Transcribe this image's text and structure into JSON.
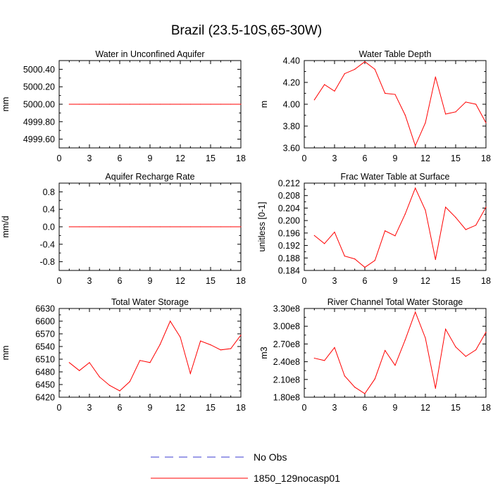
{
  "page": {
    "title": "Brazil (23.5-10S,65-30W)"
  },
  "legend": {
    "items": [
      {
        "label": "No Obs",
        "color": "#3b3bd1",
        "dash": true
      },
      {
        "label": "1850_129nocasp01",
        "color": "#ff0000",
        "dash": false
      }
    ]
  },
  "chart_data": [
    {
      "type": "line",
      "title": "Water in Unconfined Aquifer",
      "ylabel": "mm",
      "xlim": [
        0,
        18
      ],
      "ylim": [
        4999.5,
        5000.5
      ],
      "xticks": [
        0,
        3,
        6,
        9,
        12,
        15,
        18
      ],
      "yticks": [
        4999.6,
        4999.8,
        5000.0,
        5000.2,
        5000.4
      ],
      "ytick_labels": [
        "4999.60",
        "4999.80",
        "5000.00",
        "5000.20",
        "5000.40"
      ],
      "grid": false,
      "series": [
        {
          "name": "1850_129nocasp01",
          "color": "#ff0000",
          "x": [
            1,
            2,
            3,
            4,
            5,
            6,
            7,
            8,
            9,
            10,
            11,
            12,
            13,
            14,
            15,
            16,
            17,
            18
          ],
          "values": [
            5000,
            5000,
            5000,
            5000,
            5000,
            5000,
            5000,
            5000,
            5000,
            5000,
            5000,
            5000,
            5000,
            5000,
            5000,
            5000,
            5000,
            5000
          ]
        }
      ]
    },
    {
      "type": "line",
      "title": "Water Table Depth",
      "ylabel": "m",
      "xlim": [
        0,
        18
      ],
      "ylim": [
        3.6,
        4.4
      ],
      "xticks": [
        0,
        3,
        6,
        9,
        12,
        15,
        18
      ],
      "yticks": [
        3.6,
        3.8,
        4.0,
        4.2,
        4.4
      ],
      "ytick_labels": [
        "3.60",
        "3.80",
        "4.00",
        "4.20",
        "4.40"
      ],
      "grid": false,
      "series": [
        {
          "name": "1850_129nocasp01",
          "color": "#ff0000",
          "x": [
            1,
            2,
            3,
            4,
            5,
            6,
            7,
            8,
            9,
            10,
            11,
            12,
            13,
            14,
            15,
            16,
            17,
            18
          ],
          "values": [
            4.04,
            4.18,
            4.12,
            4.28,
            4.32,
            4.39,
            4.32,
            4.1,
            4.09,
            3.9,
            3.62,
            3.83,
            4.25,
            3.91,
            3.93,
            4.02,
            4.0,
            3.83
          ]
        }
      ]
    },
    {
      "type": "line",
      "title": "Aquifer Recharge Rate",
      "ylabel": "mm/d",
      "xlim": [
        0,
        18
      ],
      "ylim": [
        -1.0,
        1.0
      ],
      "xticks": [
        0,
        3,
        6,
        9,
        12,
        15,
        18
      ],
      "yticks": [
        -0.8,
        -0.4,
        0.0,
        0.4,
        0.8
      ],
      "ytick_labels": [
        "-0.8",
        "-0.4",
        "0.0",
        "0.4",
        "0.8"
      ],
      "grid": false,
      "series": [
        {
          "name": "1850_129nocasp01",
          "color": "#ff0000",
          "x": [
            1,
            2,
            3,
            4,
            5,
            6,
            7,
            8,
            9,
            10,
            11,
            12,
            13,
            14,
            15,
            16,
            17,
            18
          ],
          "values": [
            0,
            0,
            0,
            0,
            0,
            0,
            0,
            0,
            0,
            0,
            0,
            0,
            0,
            0,
            0,
            0,
            0,
            0
          ]
        }
      ]
    },
    {
      "type": "line",
      "title": "Frac Water Table at Surface",
      "ylabel": "unitless [0-1]",
      "xlim": [
        0,
        18
      ],
      "ylim": [
        0.184,
        0.212
      ],
      "xticks": [
        0,
        3,
        6,
        9,
        12,
        15,
        18
      ],
      "yticks": [
        0.184,
        0.188,
        0.192,
        0.196,
        0.2,
        0.204,
        0.208,
        0.212
      ],
      "ytick_labels": [
        "0.184",
        "0.188",
        "0.192",
        "0.196",
        "0.200",
        "0.204",
        "0.208",
        "0.212"
      ],
      "grid": false,
      "series": [
        {
          "name": "1850_129nocasp01",
          "color": "#ff0000",
          "x": [
            1,
            2,
            3,
            4,
            5,
            6,
            7,
            8,
            9,
            10,
            11,
            12,
            13,
            14,
            15,
            16,
            17,
            18
          ],
          "values": [
            0.1952,
            0.1926,
            0.1963,
            0.1886,
            0.1877,
            0.185,
            0.1872,
            0.1967,
            0.1951,
            0.2021,
            0.2104,
            0.2033,
            0.1875,
            0.2043,
            0.201,
            0.1971,
            0.1985,
            0.2043
          ]
        }
      ]
    },
    {
      "type": "line",
      "title": "Total Water Storage",
      "ylabel": "mm",
      "xlim": [
        0,
        18
      ],
      "ylim": [
        6420,
        6630
      ],
      "xticks": [
        0,
        3,
        6,
        9,
        12,
        15,
        18
      ],
      "yticks": [
        6420,
        6450,
        6480,
        6510,
        6540,
        6570,
        6600,
        6630
      ],
      "ytick_labels": [
        "6420",
        "6450",
        "6480",
        "6510",
        "6540",
        "6570",
        "6600",
        "6630"
      ],
      "grid": false,
      "series": [
        {
          "name": "1850_129nocasp01",
          "color": "#ff0000",
          "x": [
            1,
            2,
            3,
            4,
            5,
            6,
            7,
            8,
            9,
            10,
            11,
            12,
            13,
            14,
            15,
            16,
            17,
            18
          ],
          "values": [
            6502,
            6483,
            6502,
            6468,
            6448,
            6435,
            6457,
            6507,
            6502,
            6545,
            6600,
            6562,
            6476,
            6553,
            6544,
            6532,
            6535,
            6567
          ]
        }
      ]
    },
    {
      "type": "line",
      "title": "River Channel Total Water Storage",
      "ylabel": "m3",
      "xlim": [
        0,
        18
      ],
      "ylim": [
        180000000,
        330000000
      ],
      "xticks": [
        0,
        3,
        6,
        9,
        12,
        15,
        18
      ],
      "yticks": [
        180000000,
        210000000,
        240000000,
        270000000,
        300000000,
        330000000
      ],
      "ytick_labels": [
        "1.80e8",
        "2.10e8",
        "2.40e8",
        "2.70e8",
        "3.00e8",
        "3.30e8"
      ],
      "grid": false,
      "series": [
        {
          "name": "1850_129nocasp01",
          "color": "#ff0000",
          "x": [
            1,
            2,
            3,
            4,
            5,
            6,
            7,
            8,
            9,
            10,
            11,
            12,
            13,
            14,
            15,
            16,
            17,
            18
          ],
          "values": [
            246000000,
            242000000,
            264000000,
            216000000,
            197000000,
            186000000,
            211000000,
            259000000,
            234000000,
            277000000,
            324000000,
            280000000,
            195000000,
            295000000,
            265000000,
            249000000,
            260000000,
            290000000
          ]
        }
      ]
    }
  ]
}
